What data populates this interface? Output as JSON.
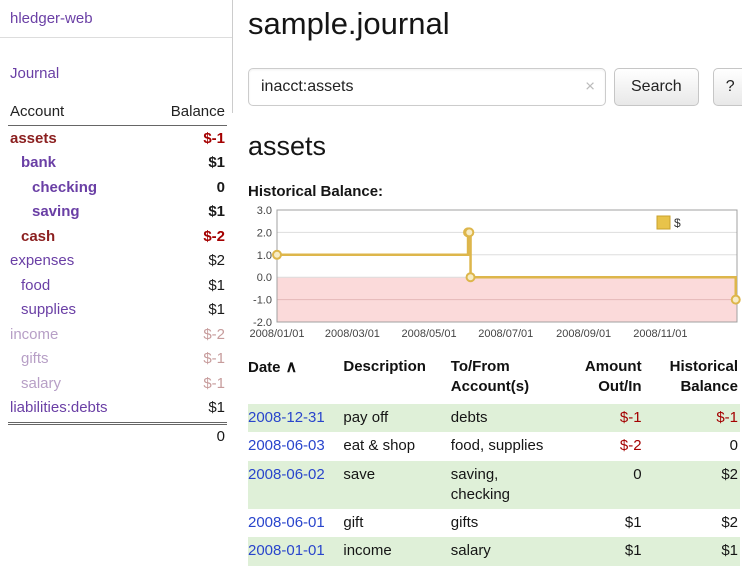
{
  "app": {
    "brand": "hledger-web",
    "nav": {
      "journal": "Journal"
    }
  },
  "colors": {
    "accent_purple": "#6a3fa5",
    "negative_red": "#a40000",
    "row_green": "#dff0d8",
    "date_link_blue": "#2945cc"
  },
  "sidebar": {
    "header": {
      "account": "Account",
      "balance": "Balance"
    },
    "accounts": [
      {
        "name": "assets",
        "indent": 0,
        "balance": "$-1",
        "tone": "maroon",
        "bold": true
      },
      {
        "name": "bank",
        "indent": 1,
        "balance": "$1",
        "tone": "purple",
        "bold": true
      },
      {
        "name": "checking",
        "indent": 2,
        "balance": "0",
        "tone": "purple",
        "bold": true
      },
      {
        "name": "saving",
        "indent": 2,
        "balance": "$1",
        "tone": "purple",
        "bold": true
      },
      {
        "name": "cash",
        "indent": 1,
        "balance": "$-2",
        "tone": "maroon",
        "bold": true
      },
      {
        "name": "expenses",
        "indent": 0,
        "balance": "$2",
        "tone": "purple",
        "bold": false
      },
      {
        "name": "food",
        "indent": 1,
        "balance": "$1",
        "tone": "purple",
        "bold": false
      },
      {
        "name": "supplies",
        "indent": 1,
        "balance": "$1",
        "tone": "purple",
        "bold": false
      },
      {
        "name": "income",
        "indent": 0,
        "balance": "$-2",
        "tone": "muted",
        "bold": false
      },
      {
        "name": "gifts",
        "indent": 1,
        "balance": "$-1",
        "tone": "muted",
        "bold": false
      },
      {
        "name": "salary",
        "indent": 1,
        "balance": "$-1",
        "tone": "muted",
        "bold": false
      },
      {
        "name": "liabilities:debts",
        "indent": 0,
        "balance": "$1",
        "tone": "purple",
        "bold": false
      }
    ],
    "total": "0"
  },
  "main": {
    "title": "sample.journal",
    "search": {
      "value": "inacct:assets",
      "clear_icon": "×",
      "button": "Search",
      "help_button": "?"
    },
    "account_heading": "assets",
    "chart_title": "Historical Balance:"
  },
  "chart_data": {
    "type": "line",
    "title": "Historical Balance:",
    "legend": [
      {
        "label": "$",
        "color": "#e8c34a"
      }
    ],
    "legend_position": "top-right",
    "grid": true,
    "x_range": [
      "2008-01-01",
      "2009-01-01"
    ],
    "ylim": [
      -2.0,
      3.0
    ],
    "y_ticks": [
      3.0,
      2.0,
      1.0,
      0.0,
      -1.0,
      -2.0
    ],
    "x_ticks": [
      "2008/01/01",
      "2008/03/01",
      "2008/05/01",
      "2008/07/01",
      "2008/09/01",
      "2008/11/01"
    ],
    "series": [
      {
        "name": "$",
        "step": true,
        "points": [
          {
            "date": "2008-01-01",
            "value": 1.0
          },
          {
            "date": "2008-06-01",
            "value": 2.0
          },
          {
            "date": "2008-06-02",
            "value": 2.0
          },
          {
            "date": "2008-06-03",
            "value": 0.0
          },
          {
            "date": "2008-12-31",
            "value": -1.0
          }
        ]
      }
    ],
    "line_color": "#ddb64b",
    "marker_fill": "#f7ecc6",
    "negative_region_color": "#fbdada"
  },
  "register": {
    "headers": {
      "date": "Date",
      "sort_icon": "∧",
      "description": "Description",
      "tofrom": "To/From\nAccount(s)",
      "amount": "Amount\nOut/In",
      "balance": "Historical\nBalance"
    },
    "rows": [
      {
        "date": "2008-12-31",
        "description": "pay off",
        "accounts": "debts",
        "amount": "$-1",
        "balance": "$-1"
      },
      {
        "date": "2008-06-03",
        "description": "eat & shop",
        "accounts": "food, supplies",
        "amount": "$-2",
        "balance": "0"
      },
      {
        "date": "2008-06-02",
        "description": "save",
        "accounts": "saving,\nchecking",
        "amount": "0",
        "balance": "$2"
      },
      {
        "date": "2008-06-01",
        "description": "gift",
        "accounts": "gifts",
        "amount": "$1",
        "balance": "$2"
      },
      {
        "date": "2008-01-01",
        "description": "income",
        "accounts": "salary",
        "amount": "$1",
        "balance": "$1"
      }
    ]
  }
}
